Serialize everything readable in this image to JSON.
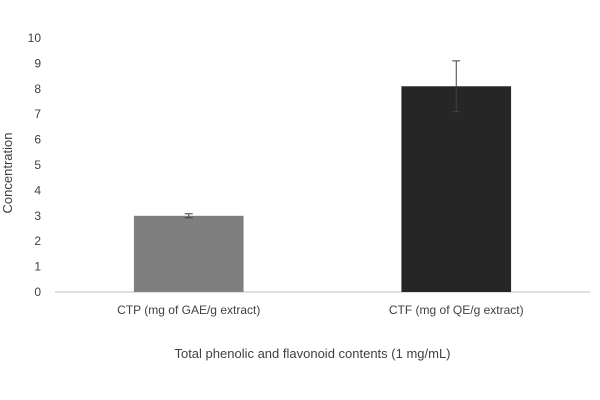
{
  "chart_data": {
    "type": "bar",
    "title": "",
    "xlabel": "Total phenolic and flavonoid contents (1 mg/mL)",
    "ylabel": "Concentration",
    "ylim": [
      0,
      10
    ],
    "yticks": [
      "0",
      "1",
      "2",
      "3",
      "4",
      "5",
      "6",
      "7",
      "8",
      "9",
      "10"
    ],
    "categories": [
      "CTP (mg of GAE/g extract)",
      "CTF (mg of QE/g extract)"
    ],
    "values": [
      3.0,
      8.1
    ],
    "errors": [
      0.08,
      1.0
    ],
    "colors": [
      "#7f7f7f",
      "#262626"
    ],
    "grid": false,
    "legend": "none"
  }
}
